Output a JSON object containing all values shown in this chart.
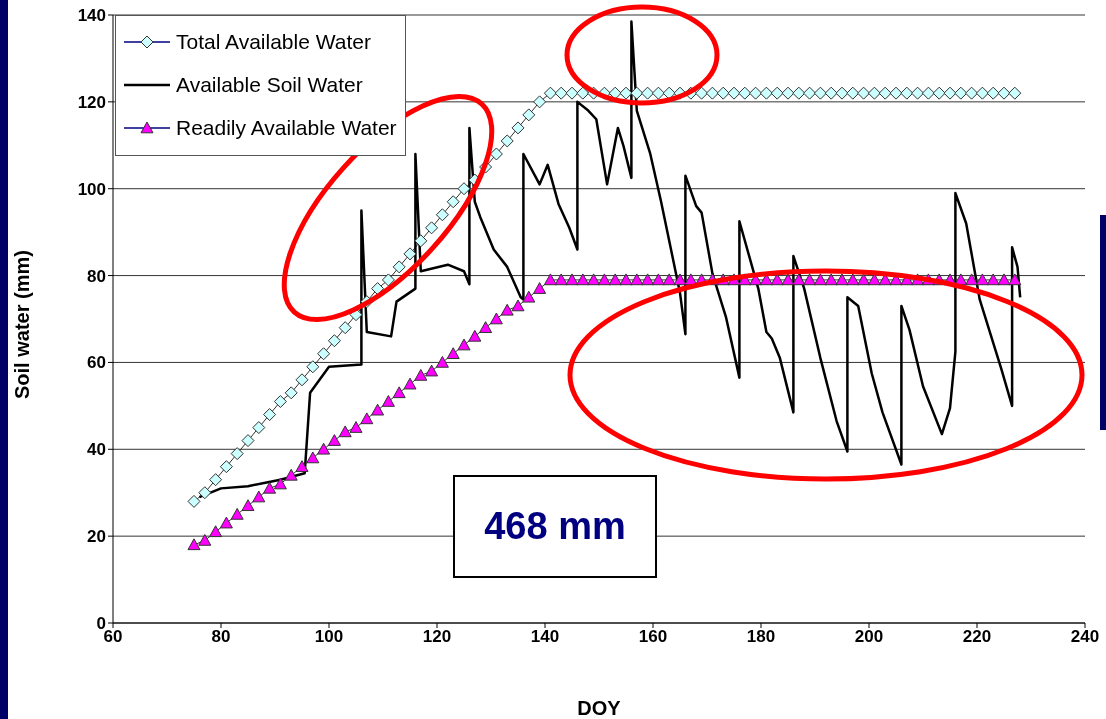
{
  "chart_data": {
    "type": "line",
    "xlabel": "DOY",
    "ylabel": "Soil water (mm)",
    "xlim": [
      60,
      240
    ],
    "xticks": [
      60,
      80,
      100,
      120,
      140,
      160,
      180,
      200,
      220,
      240
    ],
    "ylim": [
      0,
      140
    ],
    "yticks": [
      0,
      20,
      40,
      60,
      80,
      100,
      120,
      140
    ],
    "grid": "y",
    "legend": "top left",
    "annotations": [
      "468 mm"
    ],
    "x": [
      75,
      77,
      79,
      81,
      83,
      85,
      87,
      89,
      91,
      93,
      95,
      97,
      99,
      101,
      103,
      105,
      107,
      109,
      111,
      113,
      115,
      117,
      119,
      121,
      123,
      125,
      127,
      129,
      131,
      133,
      135,
      137,
      139,
      141,
      143,
      145,
      147,
      149,
      151,
      153,
      155,
      157,
      159,
      161,
      163,
      165,
      167,
      169,
      171,
      173,
      175,
      177,
      179,
      181,
      183,
      185,
      187,
      189,
      191,
      193,
      195,
      197,
      199,
      201,
      203,
      205,
      207,
      209,
      211,
      213,
      215,
      217,
      219,
      221,
      223,
      225,
      227
    ],
    "series": [
      {
        "name": "Total Available Water",
        "color": "#ccffff",
        "marker": "diamond",
        "values": [
          28,
          30,
          33,
          36,
          39,
          42,
          45,
          48,
          51,
          53,
          56,
          59,
          62,
          65,
          68,
          71,
          74,
          77,
          79,
          82,
          85,
          88,
          91,
          94,
          97,
          100,
          102,
          105,
          108,
          111,
          114,
          117,
          120,
          122,
          122,
          122,
          122,
          122,
          122,
          122,
          122,
          122,
          122,
          122,
          122,
          122,
          122,
          122,
          122,
          122,
          122,
          122,
          122,
          122,
          122,
          122,
          122,
          122,
          122,
          122,
          122,
          122,
          122,
          122,
          122,
          122,
          122,
          122,
          122,
          122,
          122,
          122,
          122,
          122,
          122,
          122,
          122
        ]
      },
      {
        "name": "Available Soil Water",
        "color": "#000000",
        "marker": "none",
        "x": [
          76,
          80,
          85,
          91,
          95.5,
          96.5,
          100,
          106,
          106,
          107,
          111.5,
          112.5,
          116,
          116,
          117,
          122,
          125,
          126,
          126,
          127,
          128,
          130.5,
          133,
          135.5,
          136,
          136,
          139,
          140.5,
          142.5,
          144.5,
          146,
          146,
          148,
          149.5,
          151.5,
          153.5,
          154.5,
          156,
          156,
          157,
          159.5,
          161.5,
          163.5,
          165,
          166,
          166,
          168,
          169,
          171,
          173.5,
          176,
          176,
          179.5,
          181,
          182,
          183.5,
          186,
          186,
          188,
          191,
          194,
          196,
          196,
          198,
          200.5,
          202.5,
          206,
          206,
          207.5,
          210,
          213.5,
          215,
          216,
          216,
          218,
          220.5,
          224.5,
          226.5,
          226.5,
          227.5,
          228
        ],
        "values": [
          29,
          31,
          31.5,
          33,
          34.5,
          53,
          59,
          59.5,
          95,
          67,
          66,
          74,
          77,
          108,
          81,
          82.5,
          81,
          78,
          114,
          97,
          93.5,
          86,
          82,
          75,
          74.5,
          108,
          101,
          105.5,
          96.5,
          91,
          86,
          120,
          118,
          116,
          101,
          114,
          110,
          102.5,
          138.5,
          118,
          108,
          97,
          85,
          76,
          66.5,
          103,
          96,
          94.5,
          80.5,
          70.5,
          56.5,
          92.5,
          77,
          67,
          65.5,
          61,
          48.5,
          84.5,
          77,
          61,
          46.5,
          39.5,
          75,
          73,
          57.5,
          48.5,
          36.5,
          73,
          67.5,
          54.5,
          43.5,
          49.5,
          62.5,
          99,
          92,
          74.5,
          58.5,
          50,
          86.5,
          82,
          75
        ]
      },
      {
        "name": "Readily Available Water",
        "color": "#ff00ff",
        "marker": "triangle",
        "values": [
          18,
          19,
          21,
          23,
          25,
          27,
          29,
          31,
          32,
          34,
          36,
          38,
          40,
          42,
          44,
          45,
          47,
          49,
          51,
          53,
          55,
          57,
          58,
          60,
          62,
          64,
          66,
          68,
          70,
          72,
          73,
          75,
          77,
          79,
          79,
          79,
          79,
          79,
          79,
          79,
          79,
          79,
          79,
          79,
          79,
          79,
          79,
          79,
          79,
          79,
          79,
          79,
          79,
          79,
          79,
          79,
          79,
          79,
          79,
          79,
          79,
          79,
          79,
          79,
          79,
          79,
          79,
          79,
          79,
          79,
          79,
          79,
          79,
          79,
          79,
          79,
          79
        ]
      }
    ]
  }
}
